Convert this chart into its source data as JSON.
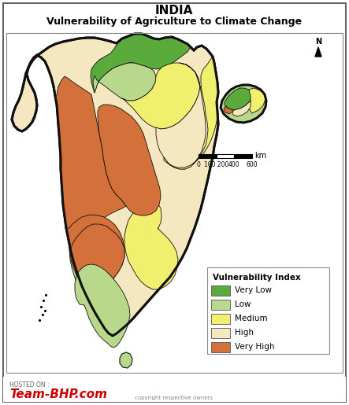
{
  "title_line1": "INDIA",
  "title_line2": "Vulnerability of Agriculture to Climate Change",
  "legend_title": "Vulnerability Index",
  "legend_items": [
    {
      "label": "Very Low",
      "color": "#5aaa3c"
    },
    {
      "label": "Low",
      "color": "#b8d98b"
    },
    {
      "label": "Medium",
      "color": "#f0f06e"
    },
    {
      "label": "High",
      "color": "#f5e8c0"
    },
    {
      "label": "Very High",
      "color": "#d4703a"
    }
  ],
  "scale_label": "km",
  "background_color": "#ffffff",
  "border_color": "#888888",
  "watermark_line1": "HOSTED ON :",
  "watermark_line2": "Team-BHP.com",
  "watermark_line3": "copyright respective owners",
  "fig_w": 4.43,
  "fig_h": 5.15,
  "dpi": 100
}
